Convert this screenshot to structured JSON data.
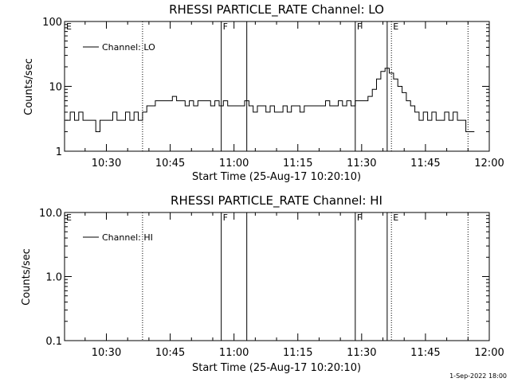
{
  "footer": {
    "timestamp": "1-Sep-2022 18:00"
  },
  "chart_data": [
    {
      "type": "line",
      "title": "RHESSI PARTICLE_RATE Channel: LO",
      "xlabel": "Start Time (25-Aug-17 10:20:10)",
      "ylabel": "Counts/sec",
      "y_scale": "log",
      "ylim": [
        1,
        100
      ],
      "y_ticks": [
        1,
        10,
        100
      ],
      "y_tick_labels": [
        "1",
        "10",
        "100"
      ],
      "xlim": [
        "10:20:10",
        "12:00:00"
      ],
      "x_ticks": [
        "10:30",
        "10:45",
        "11:00",
        "11:15",
        "11:30",
        "11:45",
        "12:00"
      ],
      "x_tick_labels": [
        "10:30",
        "10:45",
        "11:00",
        "11:15",
        "11:30",
        "11:45",
        "12:00"
      ],
      "legend": {
        "placement": "top-left",
        "entries": [
          "Channel: LO"
        ]
      },
      "grid": false,
      "markers": [
        {
          "time": "10:20:10",
          "style": "dotted",
          "label": "E"
        },
        {
          "time": "10:38:30",
          "style": "dotted",
          "label": ""
        },
        {
          "time": "10:57:00",
          "style": "solid",
          "label": "F"
        },
        {
          "time": "11:03:00",
          "style": "solid",
          "label": ""
        },
        {
          "time": "11:28:30",
          "style": "solid",
          "label": "F"
        },
        {
          "time": "11:36:00",
          "style": "solid",
          "label": ""
        },
        {
          "time": "11:37:00",
          "style": "dotted",
          "label": "E"
        },
        {
          "time": "11:55:00",
          "style": "dotted",
          "label": ""
        }
      ],
      "series": [
        {
          "name": "Channel: LO",
          "x": [
            "10:21",
            "10:22",
            "10:23",
            "10:24",
            "10:25",
            "10:26",
            "10:27",
            "10:28",
            "10:29",
            "10:30",
            "10:31",
            "10:32",
            "10:33",
            "10:34",
            "10:35",
            "10:36",
            "10:37",
            "10:38",
            "10:39",
            "10:40",
            "10:41",
            "10:42",
            "10:43",
            "10:44",
            "10:45",
            "10:46",
            "10:47",
            "10:48",
            "10:49",
            "10:50",
            "10:51",
            "10:52",
            "10:53",
            "10:54",
            "10:55",
            "10:56",
            "10:57",
            "10:58",
            "10:59",
            "11:00",
            "11:01",
            "11:02",
            "11:03",
            "11:04",
            "11:05",
            "11:06",
            "11:07",
            "11:08",
            "11:09",
            "11:10",
            "11:11",
            "11:12",
            "11:13",
            "11:14",
            "11:15",
            "11:16",
            "11:17",
            "11:18",
            "11:19",
            "11:20",
            "11:21",
            "11:22",
            "11:23",
            "11:24",
            "11:25",
            "11:26",
            "11:27",
            "11:28",
            "11:29",
            "11:30",
            "11:31",
            "11:32",
            "11:33",
            "11:34",
            "11:35",
            "11:36",
            "11:37",
            "11:38",
            "11:39",
            "11:40",
            "11:41",
            "11:42",
            "11:43",
            "11:44",
            "11:45",
            "11:46",
            "11:47",
            "11:48",
            "11:49",
            "11:50",
            "11:51",
            "11:52",
            "11:53",
            "11:54",
            "11:55",
            "11:56"
          ],
          "values": [
            3,
            4,
            3,
            4,
            3,
            3,
            3,
            2,
            3,
            3,
            3,
            4,
            3,
            3,
            4,
            3,
            4,
            3,
            4,
            5,
            5,
            6,
            6,
            6,
            6,
            7,
            6,
            6,
            5,
            6,
            5,
            6,
            6,
            6,
            5,
            6,
            5,
            6,
            5,
            5,
            5,
            5,
            6,
            5,
            4,
            5,
            5,
            4,
            5,
            4,
            4,
            5,
            4,
            5,
            5,
            4,
            5,
            5,
            5,
            5,
            5,
            6,
            5,
            5,
            6,
            5,
            6,
            5,
            6,
            6,
            6,
            7,
            9,
            13,
            17,
            19,
            16,
            13,
            10,
            8,
            6,
            5,
            4,
            3,
            4,
            3,
            4,
            3,
            3,
            4,
            3,
            4,
            3,
            3,
            2,
            2
          ]
        }
      ]
    },
    {
      "type": "line",
      "title": "RHESSI PARTICLE_RATE Channel: HI",
      "xlabel": "Start Time (25-Aug-17 10:20:10)",
      "ylabel": "Counts/sec",
      "y_scale": "log",
      "ylim": [
        0.1,
        10.0
      ],
      "y_ticks": [
        0.1,
        1.0,
        10.0
      ],
      "y_tick_labels": [
        "0.1",
        "1.0",
        "10.0"
      ],
      "xlim": [
        "10:20:10",
        "12:00:00"
      ],
      "x_ticks": [
        "10:30",
        "10:45",
        "11:00",
        "11:15",
        "11:30",
        "11:45",
        "12:00"
      ],
      "x_tick_labels": [
        "10:30",
        "10:45",
        "11:00",
        "11:15",
        "11:30",
        "11:45",
        "12:00"
      ],
      "legend": {
        "placement": "top-left",
        "entries": [
          "Channel: HI"
        ]
      },
      "grid": false,
      "markers": [
        {
          "time": "10:20:10",
          "style": "dotted",
          "label": "E"
        },
        {
          "time": "10:38:30",
          "style": "dotted",
          "label": ""
        },
        {
          "time": "10:57:00",
          "style": "solid",
          "label": "F"
        },
        {
          "time": "11:03:00",
          "style": "solid",
          "label": ""
        },
        {
          "time": "11:28:30",
          "style": "solid",
          "label": "F"
        },
        {
          "time": "11:36:00",
          "style": "solid",
          "label": ""
        },
        {
          "time": "11:37:00",
          "style": "dotted",
          "label": "E"
        },
        {
          "time": "11:55:00",
          "style": "dotted",
          "label": ""
        }
      ],
      "series": [
        {
          "name": "Channel: HI",
          "x": [],
          "values": []
        }
      ]
    }
  ]
}
